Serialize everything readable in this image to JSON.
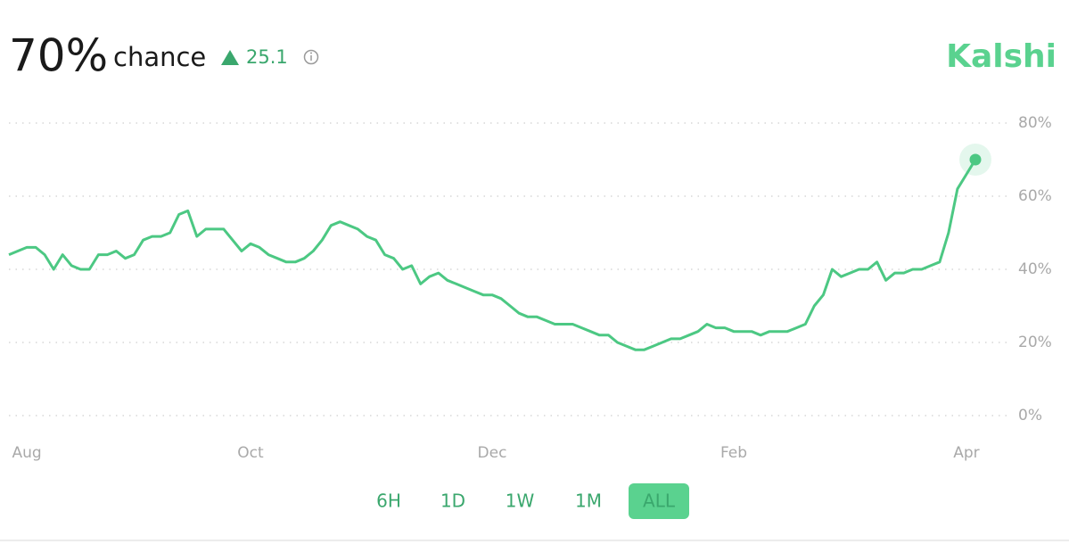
{
  "header": {
    "probability": "70%",
    "label": "chance",
    "change": "25.1",
    "brand": "Kalshi"
  },
  "ranges": {
    "buttons": [
      "6H",
      "1D",
      "1W",
      "1M",
      "ALL"
    ],
    "active": "ALL"
  },
  "chart_data": {
    "type": "line",
    "color": "#4cc883",
    "categories": [
      null,
      null,
      "Aug",
      null,
      null,
      null,
      null,
      null,
      null,
      null,
      null,
      null,
      null,
      null,
      null,
      null,
      null,
      null,
      null,
      null,
      null,
      null,
      null,
      null,
      null,
      null,
      null,
      "Oct",
      null,
      null,
      null,
      null,
      null,
      null,
      null,
      null,
      null,
      null,
      null,
      null,
      null,
      null,
      null,
      null,
      null,
      null,
      null,
      null,
      null,
      null,
      null,
      null,
      null,
      null,
      "Dec",
      null,
      null,
      null,
      null,
      null,
      null,
      null,
      null,
      null,
      null,
      null,
      null,
      null,
      null,
      null,
      null,
      null,
      null,
      null,
      null,
      null,
      null,
      null,
      null,
      null,
      null,
      "Feb",
      null,
      null,
      null,
      null,
      null,
      null,
      null,
      null,
      null,
      null,
      null,
      null,
      null,
      null,
      null,
      null,
      null,
      null,
      null,
      null,
      null,
      null,
      null,
      null,
      null,
      "Apr",
      null
    ],
    "values": [
      44,
      45,
      46,
      46,
      44,
      40,
      44,
      41,
      40,
      40,
      44,
      44,
      45,
      43,
      44,
      48,
      49,
      49,
      50,
      55,
      56,
      49,
      51,
      51,
      51,
      48,
      45,
      47,
      46,
      44,
      43,
      42,
      42,
      43,
      45,
      48,
      52,
      53,
      52,
      51,
      49,
      48,
      44,
      43,
      40,
      41,
      36,
      38,
      39,
      37,
      36,
      35,
      34,
      33,
      33,
      32,
      30,
      28,
      27,
      27,
      26,
      25,
      25,
      25,
      24,
      23,
      22,
      22,
      20,
      19,
      18,
      18,
      19,
      20,
      21,
      21,
      22,
      23,
      25,
      24,
      24,
      23,
      23,
      23,
      22,
      23,
      23,
      23,
      24,
      25,
      30,
      33,
      40,
      38,
      39,
      40,
      40,
      42,
      37,
      39,
      39,
      40,
      40,
      41,
      42,
      50,
      62,
      66,
      70
    ],
    "ylim": [
      0,
      80
    ],
    "yticks": [
      {
        "value": 0,
        "label": "0%"
      },
      {
        "value": 20,
        "label": "20%"
      },
      {
        "value": 40,
        "label": "40%"
      },
      {
        "value": 60,
        "label": "60%"
      },
      {
        "value": 80,
        "label": "80%"
      }
    ],
    "grid": true
  }
}
